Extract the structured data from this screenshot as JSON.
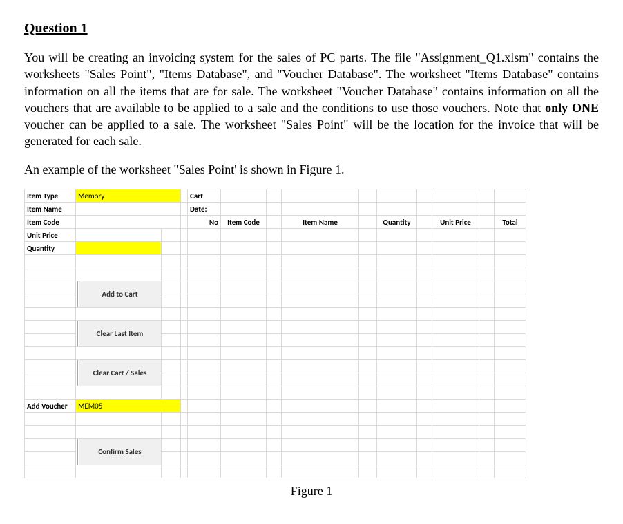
{
  "heading": "Question 1",
  "paragraph1_parts": {
    "p1": "You will be creating an invoicing system for the sales of PC parts. The file \"Assignment_Q1.xlsm\" contains the worksheets \"Sales Point\", \"Items Database\", and \"Voucher Database\". The worksheet \"Items Database\" contains information on all the items that are for sale. The worksheet \"Voucher Database\" contains information on all the vouchers that are available to be applied to a sale and the conditions to use those vouchers. Note that ",
    "bold": "only ONE",
    "p2": " voucher can be applied to a sale. The worksheet \"Sales Point\" will be the location for the invoice that will be generated for each sale."
  },
  "paragraph2": "An example of the worksheet \"Sales Point' is shown in Figure 1.",
  "sheet": {
    "left_labels": {
      "item_type": "Item Type",
      "item_name": "Item Name",
      "item_code": "Item Code",
      "unit_price": "Unit Price",
      "quantity": "Quantity",
      "add_voucher": "Add Voucher"
    },
    "left_values": {
      "item_type": "Memory",
      "item_name": "",
      "item_code": "",
      "unit_price": "",
      "quantity": "",
      "voucher": "MEM05"
    },
    "buttons": {
      "add_to_cart": "Add to Cart",
      "clear_last": "Clear Last Item",
      "clear_cart": "Clear Cart / Sales",
      "confirm": "Confirm Sales"
    },
    "cart_labels": {
      "cart": "Cart",
      "date": "Date:",
      "no": "No",
      "item_code": "Item Code",
      "item_name": "Item Name",
      "quantity": "Quantity",
      "unit_price": "Unit Price",
      "total": "Total"
    },
    "colors": {
      "yellow": "#ffff00",
      "grid": "#d9d9d9",
      "button_bg": "#f0f0f0",
      "button_border": "#a8a8a8"
    }
  },
  "figure_caption": "Figure 1"
}
